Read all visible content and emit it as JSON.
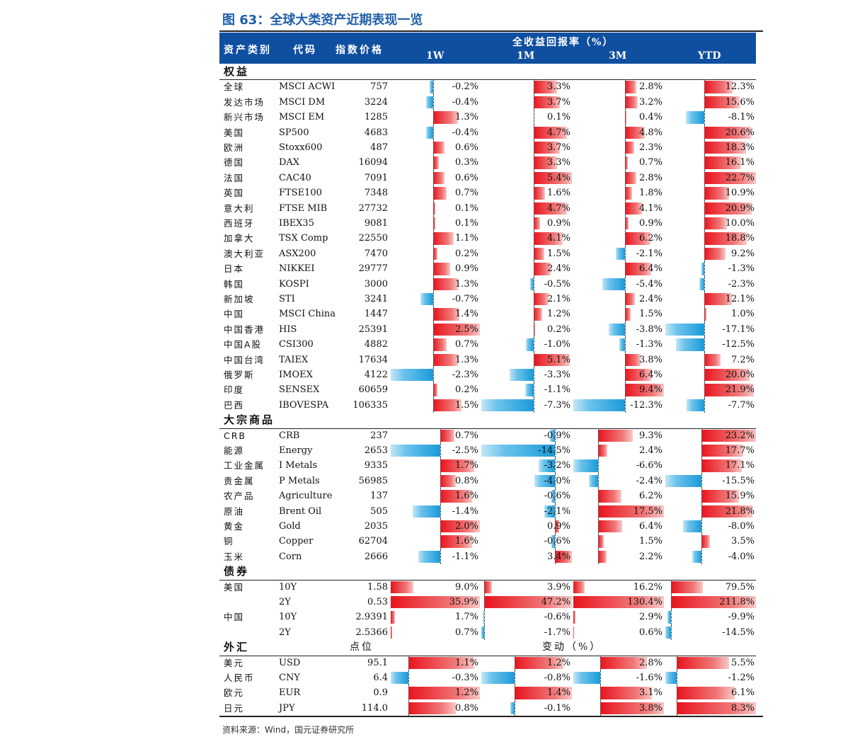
{
  "title": "图 63：全球大类资产近期表现一览",
  "header": {
    "col_category": "资产类别",
    "col_code": "代码",
    "col_price": "指数价格",
    "group_label": "全收益回报率（%）",
    "periods": [
      "1W",
      "1M",
      "3M",
      "YTD"
    ]
  },
  "sections": [
    {
      "label": "权益",
      "rows": [
        {
          "category": "全球",
          "code": "MSCI ACWI",
          "price": "757",
          "values": [
            -0.2,
            3.3,
            2.8,
            12.3
          ]
        },
        {
          "category": "发达市场",
          "code": "MSCI DM",
          "price": "3224",
          "values": [
            -0.4,
            3.7,
            3.2,
            15.6
          ]
        },
        {
          "category": "新兴市场",
          "code": "MSCI EM",
          "price": "1285",
          "values": [
            1.3,
            0.1,
            0.4,
            -8.1
          ]
        },
        {
          "category": "美国",
          "code": "SP500",
          "price": "4683",
          "values": [
            -0.4,
            4.7,
            4.8,
            20.6
          ]
        },
        {
          "category": "欧洲",
          "code": "Stoxx600",
          "price": "487",
          "values": [
            0.6,
            3.7,
            2.3,
            18.3
          ]
        },
        {
          "category": "德国",
          "code": "DAX",
          "price": "16094",
          "values": [
            0.3,
            3.3,
            0.7,
            16.1
          ]
        },
        {
          "category": "法国",
          "code": "CAC40",
          "price": "7091",
          "values": [
            0.6,
            5.4,
            2.8,
            22.7
          ]
        },
        {
          "category": "英国",
          "code": "FTSE100",
          "price": "7348",
          "values": [
            0.7,
            1.6,
            1.8,
            10.9
          ]
        },
        {
          "category": "意大利",
          "code": "FTSE MIB",
          "price": "27732",
          "values": [
            0.1,
            4.7,
            4.1,
            20.9
          ]
        },
        {
          "category": "西班牙",
          "code": "IBEX35",
          "price": "9081",
          "values": [
            0.1,
            0.9,
            0.9,
            10.0
          ]
        },
        {
          "category": "加拿大",
          "code": "TSX Comp",
          "price": "22550",
          "values": [
            1.1,
            4.1,
            6.2,
            18.8
          ]
        },
        {
          "category": "澳大利亚",
          "code": "ASX200",
          "price": "7470",
          "values": [
            0.2,
            1.5,
            -2.1,
            9.2
          ]
        },
        {
          "category": "日本",
          "code": "NIKKEI",
          "price": "29777",
          "values": [
            0.9,
            2.4,
            6.4,
            -1.3
          ]
        },
        {
          "category": "韩国",
          "code": "KOSPI",
          "price": "3000",
          "values": [
            1.3,
            -0.5,
            -5.4,
            -2.3
          ]
        },
        {
          "category": "新加坡",
          "code": "STI",
          "price": "3241",
          "values": [
            -0.7,
            2.1,
            2.4,
            12.1
          ]
        },
        {
          "category": "中国",
          "code": "MSCI China",
          "price": "1447",
          "values": [
            1.4,
            1.2,
            1.5,
            1.0
          ]
        },
        {
          "category": "中国香港",
          "code": "HIS",
          "price": "25391",
          "values": [
            2.5,
            0.2,
            -3.8,
            -17.1
          ]
        },
        {
          "category": "中国A股",
          "code": "CSI300",
          "price": "4882",
          "values": [
            0.7,
            -1.0,
            -1.3,
            -12.5
          ]
        },
        {
          "category": "中国台湾",
          "code": "TAIEX",
          "price": "17634",
          "values": [
            1.3,
            5.1,
            3.8,
            7.2
          ]
        },
        {
          "category": "俄罗斯",
          "code": "IMOEX",
          "price": "4122",
          "values": [
            -2.3,
            -3.3,
            6.4,
            20.0
          ]
        },
        {
          "category": "印度",
          "code": "SENSEX",
          "price": "60659",
          "values": [
            0.2,
            -1.1,
            9.4,
            21.9
          ]
        },
        {
          "category": "巴西",
          "code": "IBOVESPA",
          "price": "106335",
          "values": [
            1.5,
            -7.3,
            -12.3,
            -7.7
          ]
        }
      ]
    },
    {
      "label": "大宗商品",
      "rows": [
        {
          "category": "CRB",
          "code": "CRB",
          "price": "237",
          "values": [
            0.7,
            -0.9,
            9.3,
            23.2
          ]
        },
        {
          "category": "能源",
          "code": "Energy",
          "price": "2653",
          "values": [
            -2.5,
            -14.5,
            2.4,
            17.7
          ]
        },
        {
          "category": "工业金属",
          "code": "I Metals",
          "price": "9335",
          "values": [
            1.7,
            -3.2,
            -6.6,
            17.1
          ]
        },
        {
          "category": "贵金属",
          "code": "P Metals",
          "price": "56985",
          "values": [
            0.8,
            -4.0,
            -2.4,
            -15.5
          ]
        },
        {
          "category": "农产品",
          "code": "Agriculture",
          "price": "137",
          "values": [
            1.6,
            -0.6,
            6.2,
            15.9
          ]
        },
        {
          "category": "原油",
          "code": "Brent Oil",
          "price": "505",
          "values": [
            -1.4,
            -2.1,
            17.5,
            21.8
          ]
        },
        {
          "category": "黄金",
          "code": "Gold",
          "price": "2035",
          "values": [
            2.0,
            0.9,
            6.4,
            -8.0
          ]
        },
        {
          "category": "铜",
          "code": "Copper",
          "price": "62704",
          "values": [
            1.6,
            -0.6,
            1.5,
            3.5
          ]
        },
        {
          "category": "玉米",
          "code": "Corn",
          "price": "2666",
          "values": [
            -1.1,
            3.4,
            2.2,
            -4.0
          ]
        }
      ]
    },
    {
      "label": "债券",
      "rows": [
        {
          "category": "美国",
          "code": "10Y",
          "price": "1.58",
          "values": [
            9.0,
            3.9,
            16.2,
            79.5
          ]
        },
        {
          "category": "",
          "code": "2Y",
          "price": "0.53",
          "values": [
            35.9,
            47.2,
            130.4,
            211.8
          ]
        },
        {
          "category": "中国",
          "code": "10Y",
          "price": "2.9391",
          "values": [
            1.7,
            -0.6,
            2.9,
            -9.9
          ]
        },
        {
          "category": "",
          "code": "2Y",
          "price": "2.5366",
          "values": [
            0.7,
            -1.7,
            0.6,
            -14.5
          ]
        }
      ]
    },
    {
      "label": "外汇",
      "sub_price": "点位",
      "sub_change": "变动（%）",
      "rows": [
        {
          "category": "美元",
          "code": "USD",
          "price": "95.1",
          "values": [
            1.1,
            1.2,
            2.8,
            5.5
          ]
        },
        {
          "category": "人民币",
          "code": "CNY",
          "price": "6.4",
          "values": [
            -0.3,
            -0.8,
            -1.6,
            -1.2
          ]
        },
        {
          "category": "欧元",
          "code": "EUR",
          "price": "0.9",
          "values": [
            1.2,
            1.4,
            3.1,
            6.1
          ]
        },
        {
          "category": "日元",
          "code": "JPY",
          "price": "114.0",
          "values": [
            0.8,
            -0.1,
            3.8,
            8.3
          ]
        }
      ]
    }
  ],
  "source": "资料来源：Wind，国元证券研究所",
  "colors": {
    "header_bg": "#0f4fa0",
    "positive": "#e8141e",
    "negative": "#1a9ad8",
    "title": "#1f5fa8"
  }
}
